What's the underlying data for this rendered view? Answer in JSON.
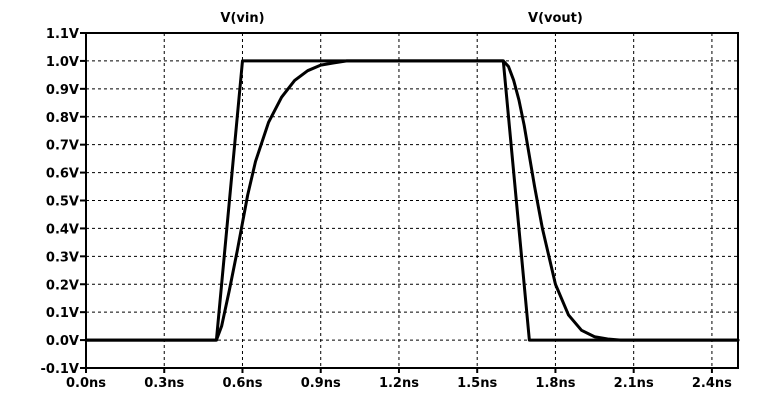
{
  "chart_data": {
    "type": "line",
    "title": "",
    "xlabel": "",
    "ylabel": "",
    "xlim": [
      0.0,
      2.5
    ],
    "ylim": [
      -0.1,
      1.1
    ],
    "grid": true,
    "legend_placement": "top",
    "x_ticks": [
      {
        "value": 0.0,
        "label": "0.0ns"
      },
      {
        "value": 0.3,
        "label": "0.3ns"
      },
      {
        "value": 0.6,
        "label": "0.6ns"
      },
      {
        "value": 0.9,
        "label": "0.9ns"
      },
      {
        "value": 1.2,
        "label": "1.2ns"
      },
      {
        "value": 1.5,
        "label": "1.5ns"
      },
      {
        "value": 1.8,
        "label": "1.8ns"
      },
      {
        "value": 2.1,
        "label": "2.1ns"
      },
      {
        "value": 2.4,
        "label": "2.4ns"
      }
    ],
    "y_ticks": [
      {
        "value": 1.1,
        "label": "1.1V"
      },
      {
        "value": 1.0,
        "label": "1.0V"
      },
      {
        "value": 0.9,
        "label": "0.9V"
      },
      {
        "value": 0.8,
        "label": "0.8V"
      },
      {
        "value": 0.7,
        "label": "0.7V"
      },
      {
        "value": 0.6,
        "label": "0.6V"
      },
      {
        "value": 0.5,
        "label": "0.5V"
      },
      {
        "value": 0.4,
        "label": "0.4V"
      },
      {
        "value": 0.3,
        "label": "0.3V"
      },
      {
        "value": 0.2,
        "label": "0.2V"
      },
      {
        "value": 0.1,
        "label": "0.1V"
      },
      {
        "value": 0.0,
        "label": "0.0V"
      },
      {
        "value": -0.1,
        "label": "-0.1V"
      }
    ],
    "series": [
      {
        "name": "V(vin)",
        "color": "#000000",
        "x": [
          0.0,
          0.5,
          0.6,
          1.6,
          1.7,
          2.5
        ],
        "y": [
          0.0,
          0.0,
          1.0,
          1.0,
          0.0,
          0.0
        ]
      },
      {
        "name": "V(vout)",
        "color": "#000000",
        "x": [
          0.0,
          0.5,
          0.52,
          0.55,
          0.58,
          0.6,
          0.62,
          0.65,
          0.7,
          0.75,
          0.8,
          0.85,
          0.9,
          0.95,
          1.0,
          1.6,
          1.62,
          1.64,
          1.66,
          1.68,
          1.7,
          1.72,
          1.75,
          1.8,
          1.85,
          1.9,
          1.95,
          2.0,
          2.05,
          2.5
        ],
        "y": [
          0.0,
          0.0,
          0.05,
          0.18,
          0.32,
          0.42,
          0.52,
          0.64,
          0.78,
          0.87,
          0.93,
          0.965,
          0.985,
          0.993,
          1.0,
          1.0,
          0.98,
          0.93,
          0.86,
          0.77,
          0.66,
          0.55,
          0.4,
          0.2,
          0.09,
          0.035,
          0.012,
          0.004,
          0.0,
          0.0
        ]
      }
    ],
    "legend_entries": [
      {
        "label": "V(vin)",
        "anchor_x": 0.6
      },
      {
        "label": "V(vout)",
        "anchor_x": 1.8
      }
    ]
  }
}
